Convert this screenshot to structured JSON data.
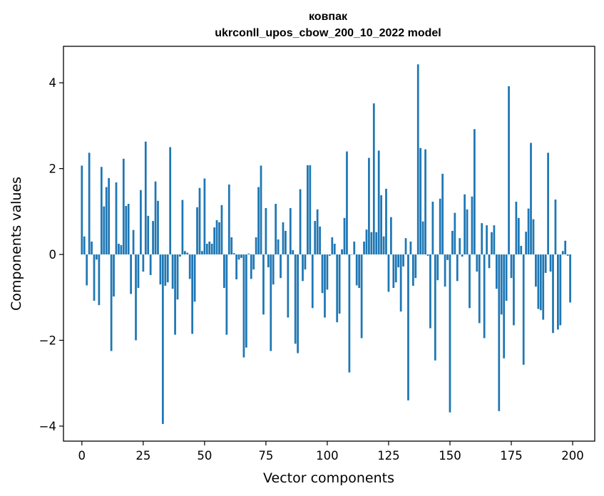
{
  "chart_data": {
    "type": "bar",
    "title": "ковпак",
    "subtitle": "ukrconll_upos_cbow_200_10_2022 model",
    "xlabel": "Vector components",
    "ylabel": "Components values",
    "xlim": [
      -7.5,
      209
    ],
    "ylim": [
      -4.35,
      4.85
    ],
    "xticks": [
      0,
      25,
      50,
      75,
      100,
      125,
      150,
      175,
      200
    ],
    "xtick_labels": [
      "0",
      "25",
      "50",
      "75",
      "100",
      "125",
      "150",
      "175",
      "200"
    ],
    "yticks": [
      -4,
      -2,
      0,
      2,
      4
    ],
    "ytick_labels": [
      "−4",
      "−2",
      "0",
      "2",
      "4"
    ],
    "grid": false,
    "legend": "none",
    "bar_color": "#1f77b4",
    "values": [
      2.07,
      0.42,
      -0.72,
      2.37,
      0.3,
      -1.08,
      -0.12,
      -1.18,
      2.04,
      1.12,
      1.57,
      1.78,
      -2.25,
      -0.98,
      1.68,
      0.25,
      0.22,
      2.23,
      1.13,
      1.18,
      -0.92,
      0.57,
      -2.0,
      -0.78,
      1.5,
      -0.4,
      2.63,
      0.9,
      -0.48,
      0.78,
      1.7,
      1.25,
      -0.7,
      -3.95,
      -0.73,
      -0.65,
      2.5,
      -0.8,
      -1.87,
      -1.05,
      -0.05,
      1.27,
      0.08,
      0.04,
      -0.57,
      -1.85,
      -1.1,
      1.1,
      1.55,
      0.08,
      1.77,
      0.25,
      0.3,
      0.25,
      0.63,
      0.8,
      0.75,
      1.15,
      -0.78,
      -1.87,
      1.63,
      0.4,
      0.03,
      -0.58,
      -0.12,
      -0.08,
      -2.4,
      -2.17,
      0.02,
      -0.57,
      -0.35,
      0.4,
      1.57,
      2.07,
      -1.4,
      1.08,
      -0.3,
      -2.25,
      -0.7,
      1.18,
      0.35,
      -0.55,
      0.75,
      0.55,
      -1.47,
      1.08,
      0.1,
      -2.08,
      -2.3,
      1.52,
      -0.62,
      -0.35,
      2.08,
      2.08,
      -1.25,
      0.78,
      1.05,
      0.65,
      -0.9,
      -1.47,
      -0.82,
      -0.03,
      0.4,
      0.25,
      -1.58,
      -1.38,
      0.12,
      0.85,
      2.4,
      -2.75,
      0.0,
      0.3,
      -0.72,
      -0.78,
      -1.95,
      0.3,
      0.58,
      2.25,
      0.52,
      3.52,
      0.52,
      2.42,
      1.38,
      0.42,
      1.53,
      -0.87,
      0.87,
      -0.78,
      -0.65,
      -0.3,
      -1.33,
      -0.28,
      0.38,
      -3.4,
      0.3,
      -0.73,
      -0.55,
      4.43,
      2.48,
      0.77,
      2.45,
      -0.03,
      -1.72,
      1.23,
      -2.47,
      -0.6,
      1.3,
      1.88,
      -0.75,
      -0.13,
      -3.68,
      0.55,
      0.97,
      -0.62,
      0.38,
      -0.05,
      1.4,
      1.05,
      -1.25,
      1.35,
      2.92,
      -0.4,
      -1.6,
      0.73,
      -1.95,
      0.68,
      -0.32,
      0.52,
      0.68,
      -0.8,
      -3.65,
      -1.4,
      -2.42,
      -1.08,
      3.92,
      -0.55,
      -1.65,
      1.23,
      0.85,
      0.2,
      -2.57,
      0.53,
      1.07,
      2.6,
      0.82,
      -0.75,
      -1.27,
      -1.3,
      -1.52,
      -0.43,
      2.37,
      -0.4,
      -1.83,
      1.28,
      -1.75,
      -1.65,
      0.08,
      0.32,
      -0.03,
      -1.12
    ]
  }
}
